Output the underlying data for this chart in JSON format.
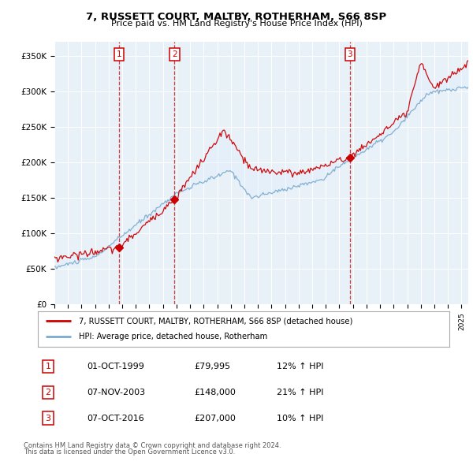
{
  "title": "7, RUSSETT COURT, MALTBY, ROTHERHAM, S66 8SP",
  "subtitle": "Price paid vs. HM Land Registry's House Price Index (HPI)",
  "ylim": [
    0,
    370000
  ],
  "yticks": [
    0,
    50000,
    100000,
    150000,
    200000,
    250000,
    300000,
    350000
  ],
  "ytick_labels": [
    "£0",
    "£50K",
    "£100K",
    "£150K",
    "£200K",
    "£250K",
    "£300K",
    "£350K"
  ],
  "sale_dates_num": [
    1999.75,
    2003.85,
    2016.77
  ],
  "sale_prices": [
    79995,
    148000,
    207000
  ],
  "sale_labels": [
    "1",
    "2",
    "3"
  ],
  "sale_label_info": [
    [
      "1",
      "01-OCT-1999",
      "£79,995",
      "12% ↑ HPI"
    ],
    [
      "2",
      "07-NOV-2003",
      "£148,000",
      "21% ↑ HPI"
    ],
    [
      "3",
      "07-OCT-2016",
      "£207,000",
      "10% ↑ HPI"
    ]
  ],
  "legend_line1": "7, RUSSETT COURT, MALTBY, ROTHERHAM, S66 8SP (detached house)",
  "legend_line2": "HPI: Average price, detached house, Rotherham",
  "footer1": "Contains HM Land Registry data © Crown copyright and database right 2024.",
  "footer2": "This data is licensed under the Open Government Licence v3.0.",
  "line_color_red": "#cc0000",
  "line_color_blue": "#7aaacc",
  "shade_color": "#ddeeff",
  "chart_bg": "#e8f0f8",
  "grid_color": "#ffffff",
  "background_color": "#ffffff",
  "xmin": 1995,
  "xmax": 2025.5
}
